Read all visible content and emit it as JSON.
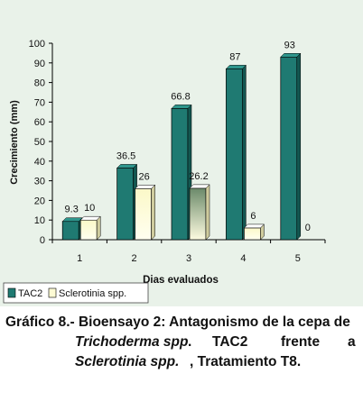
{
  "chart_data": {
    "type": "bar",
    "categories": [
      "1",
      "2",
      "3",
      "4",
      "5"
    ],
    "series": [
      {
        "name": "TAC2",
        "values": [
          9.3,
          36.5,
          66.8,
          87,
          93
        ],
        "labels": [
          "9.3",
          "36.5",
          "66.8",
          "87",
          "93"
        ],
        "color": "#1f7a72"
      },
      {
        "name": "Sclerotinia spp.",
        "values": [
          10,
          26,
          26.2,
          6,
          0
        ],
        "labels": [
          "10",
          "26",
          "26.2",
          "6",
          "0"
        ],
        "color": "#fdfbd4"
      }
    ],
    "title": "",
    "xlabel": "Dias evaluados",
    "ylabel": "Crecimiento (mm)",
    "ylim": [
      0,
      100
    ],
    "yticks": [
      0,
      10,
      20,
      30,
      40,
      50,
      60,
      70,
      80,
      90,
      100
    ],
    "grid": false,
    "legend_position": "bottom-left"
  },
  "caption": {
    "line1": "Gráfico 8.- Bioensayo 2: Antagonismo de la cepa de",
    "line2_a": "Trichoderma spp",
    "line2_b": ".",
    "line2_c": "TAC2",
    "line2_d": "frente",
    "line2_e": "a",
    "line3_a": "Sclerotinia spp.",
    "line3_b": ", Tratamiento T8."
  }
}
